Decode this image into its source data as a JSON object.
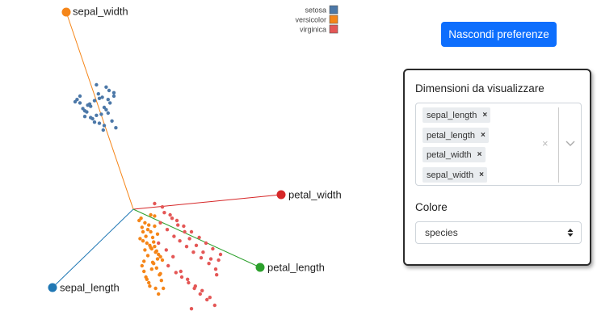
{
  "chart_data": {
    "type": "scatter",
    "legend": {
      "placement": "top-center",
      "entries": [
        {
          "name": "setosa",
          "color": "#4c78a8"
        },
        {
          "name": "versicolor",
          "color": "#f58518"
        },
        {
          "name": "virginica",
          "color": "#e45756"
        }
      ]
    },
    "axes": [
      {
        "label": "sepal_width",
        "color": "#f58518"
      },
      {
        "label": "petal_width",
        "color": "#d62728"
      },
      {
        "label": "petal_length",
        "color": "#2ca02c"
      },
      {
        "label": "sepal_length",
        "color": "#1f77b4"
      }
    ],
    "series": [
      {
        "name": "setosa",
        "color": "#4c78a8",
        "x": [
          -60,
          -38,
          -50,
          -25,
          -20,
          -35,
          -45,
          -30,
          -55,
          -40,
          -28,
          -48,
          -42,
          -33,
          -22,
          -52,
          -58,
          -36,
          -26,
          -44,
          -30,
          -18,
          -40,
          -47,
          -24,
          -32,
          -50,
          -38,
          -28,
          -20,
          -44,
          -35,
          -55,
          -26,
          -31
        ],
        "y": [
          95,
          110,
          82,
          105,
          103,
          98,
          93,
          90,
          100,
          96,
          88,
          86,
          80,
          84,
          78,
          89,
          97,
          102,
          85,
          91,
          74,
          72,
          77,
          92,
          94,
          99,
          87,
          83,
          108,
          100,
          81,
          76,
          94,
          97,
          70
        ]
      },
      {
        "name": "versicolor",
        "color": "#f58518",
        "x": [
          8,
          12,
          15,
          18,
          20,
          22,
          25,
          10,
          14,
          17,
          19,
          23,
          26,
          28,
          30,
          9,
          11,
          13,
          16,
          21,
          24,
          27,
          29,
          31,
          6,
          18,
          22,
          25,
          7,
          12,
          16,
          20,
          14,
          19,
          23,
          26,
          10,
          15,
          28,
          21,
          17,
          13,
          24,
          11,
          9,
          22,
          18
        ],
        "y": [
          -8,
          -12,
          -18,
          -20,
          -25,
          -15,
          -22,
          -28,
          -30,
          -32,
          -35,
          -38,
          -40,
          -42,
          -45,
          -50,
          -55,
          -60,
          -65,
          -48,
          -52,
          -58,
          -63,
          -70,
          -10,
          -5,
          -33,
          -44,
          -26,
          -36,
          -14,
          -47,
          -62,
          -53,
          -70,
          -75,
          -20,
          -41,
          -57,
          -29,
          -68,
          -24,
          -37,
          -46,
          -16,
          -6,
          -34
        ]
      },
      {
        "name": "virginica",
        "color": "#e45756",
        "x": [
          22,
          30,
          38,
          45,
          52,
          60,
          68,
          75,
          82,
          90,
          28,
          35,
          42,
          48,
          55,
          62,
          70,
          78,
          85,
          32,
          40,
          46,
          53,
          58,
          65,
          72,
          80,
          36,
          44,
          50,
          57,
          63,
          69,
          76,
          84,
          88,
          26,
          34,
          41,
          49,
          56,
          64,
          71,
          79,
          86,
          60
        ],
        "y": [
          5,
          2,
          -5,
          -10,
          -15,
          -20,
          -25,
          -30,
          -35,
          -40,
          -12,
          -18,
          -24,
          -28,
          -33,
          -38,
          -43,
          -48,
          -53,
          -3,
          -8,
          -14,
          -20,
          -26,
          -32,
          -38,
          -44,
          -50,
          -56,
          -60,
          -65,
          -70,
          -75,
          -80,
          -85,
          -45,
          -30,
          -36,
          -42,
          -55,
          -62,
          -68,
          -72,
          -78,
          -58,
          -88
        ]
      }
    ]
  },
  "toolbar": {
    "toggle_label": "Nascondi preferenze"
  },
  "panel": {
    "dimensions_label": "Dimensioni da visualizzare",
    "selected_dimensions": [
      "sepal_length",
      "petal_length",
      "petal_width",
      "sepal_width"
    ],
    "clear_symbol": "×",
    "color_label": "Colore",
    "color_value": "species"
  }
}
